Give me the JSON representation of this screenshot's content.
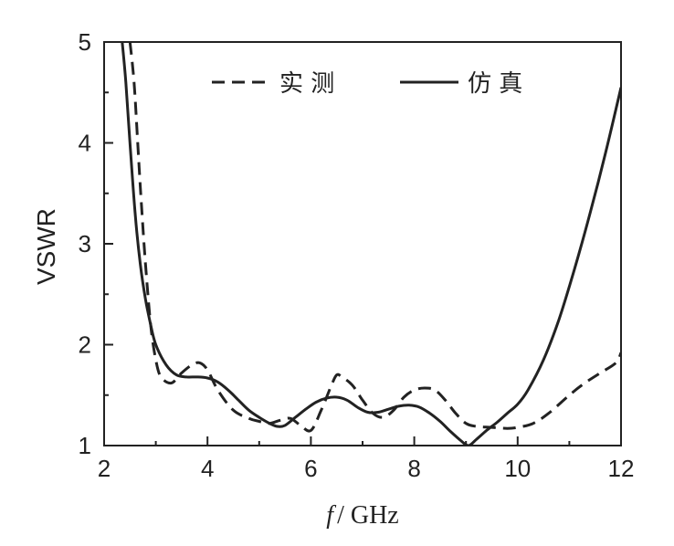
{
  "chart_data": {
    "type": "line",
    "title": "",
    "xlabel_italic": "f",
    "xlabel_rest": "/ GHz",
    "ylabel": "VSWR",
    "xlim": [
      2,
      12
    ],
    "ylim": [
      1,
      5
    ],
    "xticks": [
      "2",
      "4",
      "6",
      "8",
      "10",
      "12"
    ],
    "yticks": [
      "1",
      "2",
      "3",
      "4",
      "5"
    ],
    "grid": false,
    "legend_position": "top",
    "series": [
      {
        "name": "实 测",
        "style": "dashed",
        "x": [
          2.5,
          2.58,
          2.65,
          2.72,
          2.8,
          2.9,
          3.0,
          3.1,
          3.3,
          3.5,
          3.7,
          3.85,
          4.0,
          4.2,
          4.5,
          4.8,
          5.0,
          5.2,
          5.4,
          5.6,
          5.8,
          6.0,
          6.2,
          6.4,
          6.5,
          6.6,
          6.8,
          7.0,
          7.2,
          7.4,
          7.6,
          7.8,
          8.0,
          8.2,
          8.4,
          8.6,
          8.8,
          9.0,
          9.2,
          9.5,
          9.8,
          10.0,
          10.3,
          10.6,
          11.0,
          11.3,
          11.6,
          11.9,
          12.0
        ],
        "values": [
          5.0,
          4.6,
          4.0,
          3.4,
          2.8,
          2.2,
          1.85,
          1.68,
          1.62,
          1.72,
          1.8,
          1.82,
          1.75,
          1.55,
          1.35,
          1.27,
          1.24,
          1.22,
          1.25,
          1.27,
          1.2,
          1.15,
          1.35,
          1.6,
          1.7,
          1.68,
          1.6,
          1.45,
          1.32,
          1.28,
          1.35,
          1.48,
          1.55,
          1.57,
          1.55,
          1.45,
          1.32,
          1.22,
          1.19,
          1.18,
          1.17,
          1.18,
          1.22,
          1.32,
          1.5,
          1.62,
          1.72,
          1.82,
          1.92
        ]
      },
      {
        "name": "仿 真",
        "style": "solid",
        "x": [
          2.35,
          2.42,
          2.5,
          2.6,
          2.7,
          2.8,
          2.9,
          3.0,
          3.2,
          3.4,
          3.6,
          3.8,
          4.0,
          4.2,
          4.4,
          4.6,
          4.8,
          5.0,
          5.2,
          5.35,
          5.5,
          5.7,
          5.9,
          6.1,
          6.3,
          6.5,
          6.7,
          6.9,
          7.1,
          7.3,
          7.5,
          7.7,
          7.9,
          8.1,
          8.3,
          8.5,
          8.7,
          8.9,
          9.05,
          9.2,
          9.4,
          9.6,
          9.8,
          10.0,
          10.2,
          10.5,
          10.8,
          11.1,
          11.4,
          11.7,
          12.0
        ],
        "values": [
          5.0,
          4.6,
          4.0,
          3.3,
          2.8,
          2.45,
          2.2,
          2.0,
          1.8,
          1.7,
          1.68,
          1.68,
          1.67,
          1.63,
          1.55,
          1.45,
          1.35,
          1.28,
          1.22,
          1.19,
          1.2,
          1.28,
          1.36,
          1.43,
          1.47,
          1.48,
          1.45,
          1.38,
          1.33,
          1.33,
          1.36,
          1.39,
          1.4,
          1.38,
          1.32,
          1.24,
          1.14,
          1.05,
          1.0,
          1.06,
          1.15,
          1.23,
          1.32,
          1.41,
          1.55,
          1.85,
          2.25,
          2.75,
          3.3,
          3.9,
          4.55
        ]
      }
    ]
  }
}
